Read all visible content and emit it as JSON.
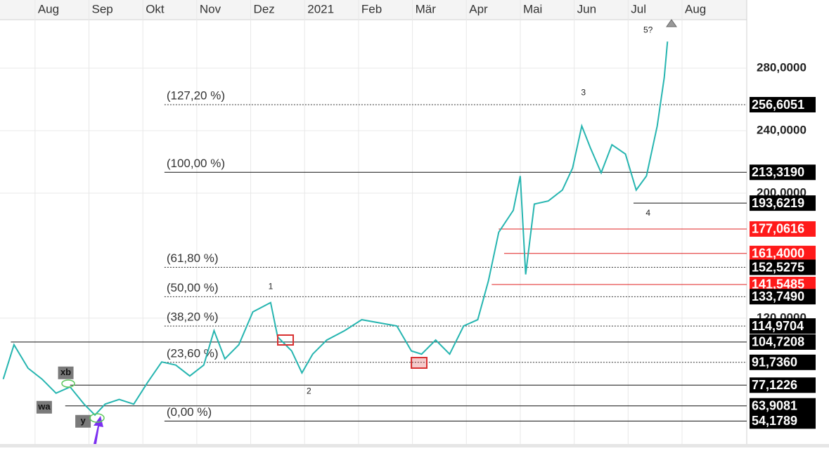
{
  "chart_data": {
    "type": "line",
    "color": "#26b5b0",
    "xlim": [
      -0.65,
      13.2
    ],
    "xticks": [
      {
        "value": 0,
        "label": "Aug"
      },
      {
        "value": 1,
        "label": "Sep"
      },
      {
        "value": 2,
        "label": "Okt"
      },
      {
        "value": 3,
        "label": "Nov"
      },
      {
        "value": 4,
        "label": "Dez"
      },
      {
        "value": 5,
        "label": "2021"
      },
      {
        "value": 6,
        "label": "Feb"
      },
      {
        "value": 7,
        "label": "Mär"
      },
      {
        "value": 8,
        "label": "Apr"
      },
      {
        "value": 9,
        "label": "Mai"
      },
      {
        "value": 10,
        "label": "Jun"
      },
      {
        "value": 11,
        "label": "Jul"
      },
      {
        "value": 12,
        "label": "Aug"
      }
    ],
    "ylim": [
      39.5,
      311
    ],
    "yticks": [
      {
        "value": 120,
        "label": "120,0000"
      },
      {
        "value": 200,
        "label": "200,0000"
      },
      {
        "value": 240,
        "label": "240,0000"
      },
      {
        "value": 280,
        "label": "280,0000"
      }
    ],
    "grid": true,
    "x": [
      -0.59,
      -0.39,
      -0.13,
      0.13,
      0.39,
      0.65,
      0.91,
      1.11,
      1.3,
      1.56,
      1.83,
      2.09,
      2.35,
      2.61,
      2.87,
      3.13,
      3.32,
      3.52,
      3.78,
      4.04,
      4.37,
      4.5,
      4.76,
      4.95,
      5.15,
      5.41,
      5.74,
      6.06,
      6.39,
      6.71,
      6.98,
      7.17,
      7.43,
      7.69,
      7.95,
      8.21,
      8.41,
      8.6,
      8.87,
      9.0,
      9.1,
      9.26,
      9.52,
      9.78,
      9.97,
      10.14,
      10.3,
      10.5,
      10.7,
      10.95,
      11.15,
      11.34,
      11.54,
      11.67,
      11.73
    ],
    "values": [
      81,
      103,
      88,
      81,
      72,
      76,
      65,
      58,
      65,
      68,
      65,
      79,
      92,
      90,
      83,
      90,
      112,
      94,
      103,
      124,
      130,
      108,
      99,
      85,
      97,
      106,
      112,
      119,
      117,
      115,
      99,
      97,
      106,
      97,
      115,
      119,
      144,
      175,
      189,
      211,
      148,
      193,
      195,
      202,
      216,
      243,
      229,
      213,
      231,
      225,
      202,
      211,
      243,
      274,
      297
    ],
    "levels": [
      {
        "value": 256.6051,
        "label": "256,6051",
        "style": "dotted",
        "x_start": 2.4,
        "fib": "(127,20 %)"
      },
      {
        "value": 213.319,
        "label": "213,3190",
        "style": "solid",
        "x_start": 2.4,
        "fib": "(100,00 %)"
      },
      {
        "value": 193.6219,
        "label": "193,6219",
        "style": "solid",
        "x_start": 11.1
      },
      {
        "value": 177.0616,
        "label": "177,0616",
        "style": "red",
        "x_start": 8.6
      },
      {
        "value": 161.4,
        "label": "161,4000",
        "style": "red",
        "x_start": 8.7
      },
      {
        "value": 152.5275,
        "label": "152,5275",
        "style": "dotted",
        "x_start": 2.4,
        "fib": "(61,80 %)"
      },
      {
        "value": 141.5485,
        "label": "141,5485",
        "style": "red",
        "x_start": 8.47
      },
      {
        "value": 133.749,
        "label": "133,7490",
        "style": "dotted",
        "x_start": 2.4,
        "fib": "(50,00 %)"
      },
      {
        "value": 114.9704,
        "label": "114,9704",
        "style": "dotted",
        "x_start": 2.4,
        "fib": "(38,20 %)"
      },
      {
        "value": 104.7208,
        "label": "104,7208",
        "style": "solid",
        "x_start": -0.45
      },
      {
        "value": 91.736,
        "label": "91,7360",
        "style": "dotted",
        "x_start": 2.4,
        "fib": "(23,60 %)"
      },
      {
        "value": 77.1226,
        "label": "77,1226",
        "style": "solid",
        "x_start": 0.65
      },
      {
        "value": 63.9081,
        "label": "63,9081",
        "style": "solid",
        "x_start": 0.56
      },
      {
        "value": 54.1789,
        "label": "54,1789",
        "style": "solid",
        "x_start": 2.4,
        "fib": "(0,00 %)"
      }
    ],
    "annotations": [
      {
        "text": "1",
        "x": 4.37,
        "y": 140
      },
      {
        "text": "2",
        "x": 5.08,
        "y": 73
      },
      {
        "text": "3",
        "x": 10.17,
        "y": 264
      },
      {
        "text": "4",
        "x": 11.37,
        "y": 187
      },
      {
        "text": "5?",
        "x": 11.37,
        "y": 304
      },
      {
        "text": "xb",
        "x": 0.57,
        "y": 85,
        "box": true
      },
      {
        "text": "wa",
        "x": 0.17,
        "y": 63,
        "box": true
      },
      {
        "text": "y",
        "x": 0.89,
        "y": 54,
        "box": true
      }
    ]
  }
}
